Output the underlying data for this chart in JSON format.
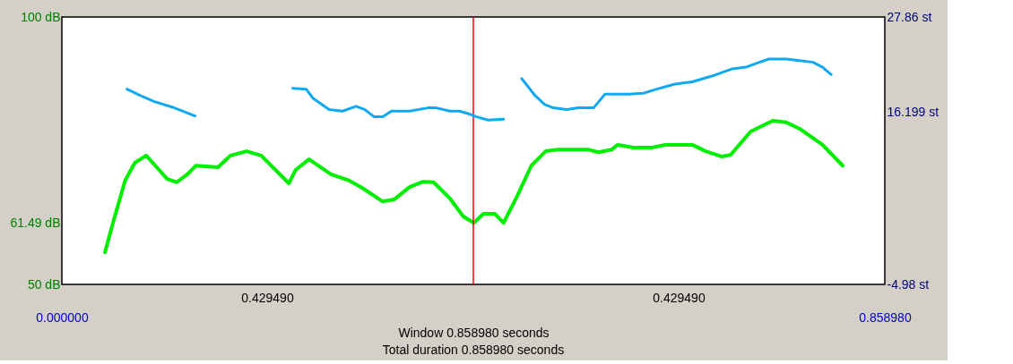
{
  "chart_data": {
    "type": "line",
    "xlabel": "Window 0.858980 seconds",
    "x": [
      0.045,
      0.054,
      0.066,
      0.076,
      0.088,
      0.099,
      0.11,
      0.12,
      0.131,
      0.14,
      0.163,
      0.176,
      0.193,
      0.208,
      0.237,
      0.244,
      0.258,
      0.281,
      0.3,
      0.313,
      0.335,
      0.347,
      0.363,
      0.377,
      0.388,
      0.405,
      0.419,
      0.43,
      0.44,
      0.452,
      0.461,
      0.475,
      0.49,
      0.505,
      0.518,
      0.55,
      0.56,
      0.574,
      0.58,
      0.597,
      0.616,
      0.63,
      0.658,
      0.672,
      0.689,
      0.698,
      0.719,
      0.742,
      0.756,
      0.77,
      0.794,
      0.815
    ],
    "series": [
      {
        "color": "#00ee00",
        "values": [
          56.0,
          61.9,
          69.4,
          72.7,
          74.1,
          71.9,
          69.7,
          69.1,
          70.6,
          72.2,
          71.9,
          74.1,
          74.9,
          74.1,
          68.9,
          71.4,
          73.4,
          70.6,
          69.4,
          68.1,
          65.5,
          65.9,
          68.2,
          69.2,
          69.1,
          66.1,
          62.7,
          61.5,
          63.2,
          63.2,
          61.5,
          66.4,
          72.2,
          74.9,
          75.2,
          75.2,
          74.7,
          75.2,
          76.1,
          75.6,
          75.6,
          76.1,
          76.1,
          74.9,
          73.9,
          74.2,
          78.6,
          80.6,
          80.3,
          79.1,
          76.1,
          72.2
        ]
      },
      {
        "color": "#10a8ee",
        "axis": "y2",
        "x": [
          0.068,
          0.082,
          0.096,
          0.115,
          0.139,
          0.19,
          0.241,
          0.255,
          0.262,
          0.279,
          0.293,
          0.307,
          0.316,
          0.326,
          0.335,
          0.344,
          0.363,
          0.382,
          0.391,
          0.405,
          0.415,
          0.424,
          0.433,
          0.445,
          0.461,
          0.47,
          0.48,
          0.494,
          0.504,
          0.513,
          0.527,
          0.539,
          0.555,
          0.567,
          0.592,
          0.607,
          0.621,
          0.639,
          0.658,
          0.681,
          0.7,
          0.714,
          0.728,
          0.738,
          0.756,
          0.77,
          0.784,
          0.794,
          0.803
        ],
        "values": [
          19.0,
          18.2,
          17.5,
          16.8,
          15.7,
          null,
          19.1,
          19.0,
          17.9,
          16.5,
          16.3,
          16.9,
          16.5,
          15.6,
          15.6,
          16.3,
          16.3,
          16.7,
          16.7,
          16.3,
          16.3,
          16.0,
          15.6,
          15.2,
          15.3,
          null,
          20.3,
          18.2,
          17.1,
          16.7,
          16.5,
          16.7,
          16.7,
          18.4,
          18.4,
          18.5,
          19.0,
          19.6,
          19.9,
          20.7,
          21.5,
          21.7,
          22.3,
          22.7,
          22.7,
          22.5,
          22.3,
          21.7,
          20.8
        ]
      }
    ],
    "xlim": [
      0,
      0.85898
    ],
    "xticks": [
      {
        "value": 0,
        "label": "0.000000"
      },
      {
        "value": 0.85898,
        "label": "0.858980"
      }
    ],
    "ylim": [
      50,
      100
    ],
    "yticks": [
      {
        "value": 50,
        "label": "50 dB"
      },
      {
        "value": 61.49,
        "label": "61.49 dB"
      },
      {
        "value": 100,
        "label": "100 dB"
      }
    ],
    "y2lim": [
      -4.98,
      27.86
    ],
    "y2ticks": [
      {
        "value": -4.98,
        "label": "-4.98 st"
      },
      {
        "value": 16.199,
        "label": "16.199 st"
      },
      {
        "value": 27.86,
        "label": "27.86 st"
      }
    ],
    "ref_lines": [
      {
        "axis": "x",
        "value": 0.42949,
        "color": "#ff0000"
      }
    ],
    "annotations": [
      "0.429490",
      "0.429490",
      "Total duration 0.858980 seconds"
    ],
    "grid": false
  }
}
